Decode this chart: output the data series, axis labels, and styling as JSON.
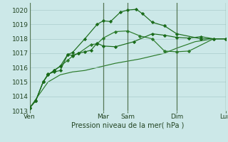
{
  "xlabel": "Pression niveau de la mer( hPa )",
  "bg_color": "#cce8e8",
  "grid_color": "#aacccc",
  "ylim": [
    1013,
    1020.5
  ],
  "xlim": [
    0,
    8.0
  ],
  "xtick_labels": [
    "Ven",
    "",
    "Mar",
    "Sam",
    "",
    "Dim",
    "",
    "Lun"
  ],
  "xtick_positions": [
    0,
    1.5,
    3,
    4,
    5,
    6,
    7,
    8
  ],
  "ytick_labels": [
    "1013",
    "1014",
    "1015",
    "1016",
    "1017",
    "1018",
    "1019",
    "1020"
  ],
  "ytick_positions": [
    1013,
    1014,
    1015,
    1016,
    1017,
    1018,
    1019,
    1020
  ],
  "vline_positions": [
    0,
    3,
    4,
    6,
    8
  ],
  "vline_color": "#557755",
  "series_colors": [
    "#1a6b1a",
    "#1a6b1a",
    "#2a7a2a",
    "#2a7a2a"
  ],
  "series_x": [
    [
      0,
      0.25,
      0.55,
      0.75,
      1.0,
      1.25,
      1.55,
      1.75,
      2.0,
      2.25,
      2.5,
      2.75,
      3.0,
      3.5,
      4.25,
      5.0,
      5.5,
      6.0,
      6.5,
      7.0,
      7.5,
      8.0
    ],
    [
      0,
      0.25,
      0.55,
      0.75,
      1.0,
      1.25,
      1.55,
      1.75,
      2.25,
      2.75,
      3.0,
      3.3,
      3.7,
      4.0,
      4.35,
      4.6,
      5.0,
      5.5,
      6.0,
      7.0,
      8.0
    ],
    [
      0,
      0.25,
      0.55,
      0.75,
      1.0,
      1.25,
      1.55,
      1.75,
      2.0,
      2.5,
      2.75,
      3.0,
      3.5,
      4.0,
      4.5,
      5.0,
      5.5,
      6.0,
      6.5,
      7.5,
      8.0
    ],
    [
      0,
      0.75,
      1.25,
      1.75,
      2.25,
      2.75,
      3.5,
      4.5,
      5.5,
      6.0,
      6.75,
      7.5,
      8.0
    ]
  ],
  "series_y": [
    [
      1013.2,
      1013.7,
      1015.0,
      1015.55,
      1015.7,
      1015.8,
      1016.9,
      1016.85,
      1017.0,
      1017.1,
      1017.2,
      1017.7,
      1017.5,
      1017.45,
      1017.8,
      1018.35,
      1018.25,
      1018.1,
      1018.05,
      1018.15,
      1018.0,
      1018.0
    ],
    [
      1013.2,
      1013.7,
      1015.0,
      1015.5,
      1015.8,
      1016.1,
      1016.9,
      1017.05,
      1018.0,
      1019.0,
      1019.25,
      1019.2,
      1019.85,
      1020.0,
      1020.05,
      1019.75,
      1019.15,
      1018.9,
      1018.35,
      1018.0,
      1018.0
    ],
    [
      1013.2,
      1013.7,
      1015.0,
      1015.5,
      1015.8,
      1016.1,
      1016.5,
      1016.8,
      1017.0,
      1017.6,
      1017.65,
      1018.05,
      1018.5,
      1018.55,
      1018.2,
      1018.0,
      1017.15,
      1017.1,
      1017.15,
      1018.0,
      1018.0
    ],
    [
      1013.2,
      1015.0,
      1015.5,
      1015.7,
      1015.8,
      1016.0,
      1016.3,
      1016.6,
      1017.0,
      1017.35,
      1017.8,
      1018.0,
      1018.0
    ]
  ],
  "marker": "D",
  "markersize": 2.2
}
